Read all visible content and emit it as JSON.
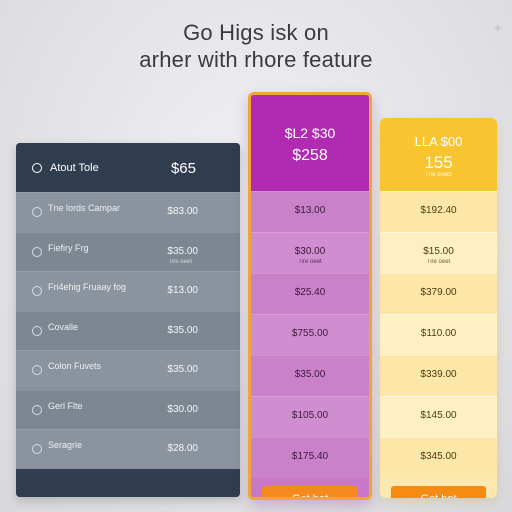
{
  "headline": {
    "line1": "Go Higs isk on",
    "line2": "arher with rhore feature"
  },
  "left_plan": {
    "label": "Atout Tole",
    "price": "$65",
    "features": [
      {
        "label": "Tne lords Campar",
        "price": "$83.00",
        "sub": ""
      },
      {
        "label": "Fiefiry Frg",
        "price": "$35.00",
        "sub": "Tire oeet"
      },
      {
        "label": "Fri4ehig Fruaay fog",
        "price": "$13.00",
        "sub": ""
      },
      {
        "label": "Covalle",
        "price": "$35.00",
        "sub": ""
      },
      {
        "label": "Colon Fuvets",
        "price": "$35.00",
        "sub": ""
      },
      {
        "label": "Gerl Flte",
        "price": "$30.00",
        "sub": ""
      },
      {
        "label": "Seragrie",
        "price": "$28.00",
        "sub": ""
      }
    ]
  },
  "purple_plan": {
    "label": "$L2 $30",
    "price": "$258",
    "cells": [
      {
        "price": "$13.00",
        "sub": ""
      },
      {
        "price": "$30.00",
        "sub": "Tire oeet"
      },
      {
        "price": "$25.40",
        "sub": ""
      },
      {
        "price": "$755.00",
        "sub": ""
      },
      {
        "price": "$35.00",
        "sub": ""
      },
      {
        "price": "$105.00",
        "sub": ""
      },
      {
        "price": "$175.40",
        "sub": ""
      }
    ],
    "cta_label": "Get hot"
  },
  "yellow_plan": {
    "label": "LLA $00",
    "price": "155",
    "note": "Tne deedl",
    "cells": [
      {
        "price": "$192.40",
        "sub": ""
      },
      {
        "price": "$15.00",
        "sub": "Tire oeet"
      },
      {
        "price": "$379.00",
        "sub": ""
      },
      {
        "price": "$110.00",
        "sub": ""
      },
      {
        "price": "$339.00",
        "sub": ""
      },
      {
        "price": "$145.00",
        "sub": ""
      },
      {
        "price": "$345.00",
        "sub": ""
      }
    ],
    "cta_label": "Get hot"
  },
  "colors": {
    "dark_header": "#2f3d4f",
    "purple_accent": "#b12ab2",
    "yellow_accent": "#f8c531",
    "cta_orange": "#f48a1d",
    "highlight_border": "#f0a637"
  },
  "icons": {
    "left_header": "circle-info-icon",
    "feature_rows": [
      "circle-icon",
      "box-icon",
      "toggle-icon",
      "search-icon",
      "chat-icon",
      "image-icon",
      "link-icon"
    ]
  }
}
